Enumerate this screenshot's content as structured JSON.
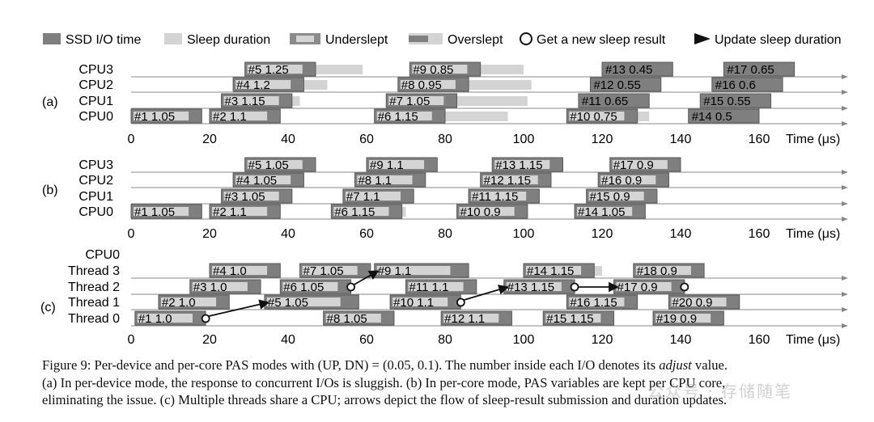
{
  "legend": {
    "ssd": "SSD I/O time",
    "sleep": "Sleep duration",
    "under": "Underslept",
    "over": "Overslept",
    "get": "Get a new sleep result",
    "update": "Update sleep duration"
  },
  "colors": {
    "ssd": "#7f7f7f",
    "ssd_edge": "#5a5a5a",
    "sleep": "#d4d4d4",
    "base": "#f2f2f2",
    "axis": "#888888"
  },
  "time_axis": {
    "ticks": [
      "0",
      "20",
      "40",
      "60",
      "80",
      "100",
      "120",
      "140",
      "160"
    ],
    "label": "Time (μs)"
  },
  "panels": [
    {
      "id": "a",
      "label": "(a)",
      "rows": [
        "CPU3",
        "CPU2",
        "CPU1",
        "CPU0"
      ],
      "ios": [
        {
          "row": 3,
          "id": "#1",
          "val": "1.05",
          "s": 0,
          "e": 18,
          "sleep_end": null,
          "kind": "normal"
        },
        {
          "row": 3,
          "id": "#2",
          "val": "1.1",
          "s": 20,
          "e": 38,
          "sleep_end": null,
          "kind": "normal"
        },
        {
          "row": 2,
          "id": "#3",
          "val": "1.15",
          "s": 23,
          "e": 41,
          "sleep_end": 43,
          "kind": "normal"
        },
        {
          "row": 1,
          "id": "#4",
          "val": "1.2",
          "s": 26,
          "e": 44,
          "sleep_end": 50,
          "kind": "normal"
        },
        {
          "row": 0,
          "id": "#5",
          "val": "1.25",
          "s": 29,
          "e": 47,
          "sleep_end": 59,
          "kind": "normal"
        },
        {
          "row": 3,
          "id": "#6",
          "val": "1.15",
          "s": 62,
          "e": 80,
          "sleep_end": 96,
          "kind": "normal"
        },
        {
          "row": 2,
          "id": "#7",
          "val": "1.05",
          "s": 65,
          "e": 83,
          "sleep_end": 101,
          "kind": "normal"
        },
        {
          "row": 1,
          "id": "#8",
          "val": "0.95",
          "s": 68,
          "e": 86,
          "sleep_end": 102,
          "kind": "normal"
        },
        {
          "row": 0,
          "id": "#9",
          "val": "0.85",
          "s": 71,
          "e": 89,
          "sleep_end": 100,
          "kind": "normal"
        },
        {
          "row": 3,
          "id": "#10",
          "val": "0.75",
          "s": 111,
          "e": 129,
          "sleep_end": 132,
          "kind": "normal"
        },
        {
          "row": 2,
          "id": "#11",
          "val": "0.65",
          "s": 114,
          "e": 132,
          "sleep_end": null,
          "kind": "dark"
        },
        {
          "row": 1,
          "id": "#12",
          "val": "0.55",
          "s": 117,
          "e": 135,
          "sleep_end": null,
          "kind": "dark"
        },
        {
          "row": 0,
          "id": "#13",
          "val": "0.45",
          "s": 120,
          "e": 138,
          "sleep_end": null,
          "kind": "dark"
        },
        {
          "row": 3,
          "id": "#14",
          "val": "0.5",
          "s": 142,
          "e": 160,
          "sleep_end": null,
          "kind": "dark"
        },
        {
          "row": 2,
          "id": "#15",
          "val": "0.55",
          "s": 145,
          "e": 163,
          "sleep_end": null,
          "kind": "dark"
        },
        {
          "row": 1,
          "id": "#16",
          "val": "0.6",
          "s": 148,
          "e": 166,
          "sleep_end": null,
          "kind": "dark"
        },
        {
          "row": 0,
          "id": "#17",
          "val": "0.65",
          "s": 151,
          "e": 169,
          "sleep_end": null,
          "kind": "dark"
        }
      ]
    },
    {
      "id": "b",
      "label": "(b)",
      "rows": [
        "CPU3",
        "CPU2",
        "CPU1",
        "CPU0"
      ],
      "ios": [
        {
          "row": 3,
          "id": "#1",
          "val": "1.05",
          "s": 0,
          "e": 18,
          "sleep_end": null,
          "kind": "normal"
        },
        {
          "row": 3,
          "id": "#2",
          "val": "1.1",
          "s": 20,
          "e": 38,
          "sleep_end": null,
          "kind": "normal"
        },
        {
          "row": 2,
          "id": "#3",
          "val": "1.05",
          "s": 23,
          "e": 41,
          "sleep_end": null,
          "kind": "normal"
        },
        {
          "row": 1,
          "id": "#4",
          "val": "1.05",
          "s": 26,
          "e": 44,
          "sleep_end": null,
          "kind": "normal"
        },
        {
          "row": 0,
          "id": "#5",
          "val": "1.05",
          "s": 29,
          "e": 47,
          "sleep_end": null,
          "kind": "normal"
        },
        {
          "row": 3,
          "id": "#6",
          "val": "1.15",
          "s": 51,
          "e": 69,
          "sleep_end": 70,
          "kind": "normal"
        },
        {
          "row": 2,
          "id": "#7",
          "val": "1.1",
          "s": 54,
          "e": 72,
          "sleep_end": null,
          "kind": "normal"
        },
        {
          "row": 1,
          "id": "#8",
          "val": "1.1",
          "s": 57,
          "e": 75,
          "sleep_end": null,
          "kind": "normal"
        },
        {
          "row": 0,
          "id": "#9",
          "val": "1.1",
          "s": 60,
          "e": 78,
          "sleep_end": null,
          "kind": "normal"
        },
        {
          "row": 3,
          "id": "#10",
          "val": "0.9",
          "s": 83,
          "e": 101,
          "sleep_end": null,
          "kind": "normal"
        },
        {
          "row": 2,
          "id": "#11",
          "val": "1.15",
          "s": 86,
          "e": 104,
          "sleep_end": null,
          "kind": "normal"
        },
        {
          "row": 1,
          "id": "#12",
          "val": "1.15",
          "s": 89,
          "e": 107,
          "sleep_end": null,
          "kind": "normal"
        },
        {
          "row": 0,
          "id": "#13",
          "val": "1.15",
          "s": 92,
          "e": 110,
          "sleep_end": null,
          "kind": "normal"
        },
        {
          "row": 3,
          "id": "#14",
          "val": "1.05",
          "s": 113,
          "e": 131,
          "sleep_end": null,
          "kind": "normal"
        },
        {
          "row": 2,
          "id": "#15",
          "val": "0.9",
          "s": 116,
          "e": 134,
          "sleep_end": null,
          "kind": "normal"
        },
        {
          "row": 1,
          "id": "#16",
          "val": "0.9",
          "s": 119,
          "e": 137,
          "sleep_end": null,
          "kind": "normal"
        },
        {
          "row": 0,
          "id": "#17",
          "val": "0.9",
          "s": 122,
          "e": 140,
          "sleep_end": null,
          "kind": "normal"
        }
      ]
    },
    {
      "id": "c",
      "label": "(c)",
      "header": "CPU0",
      "rows": [
        "Thread 3",
        "Thread 2",
        "Thread 1",
        "Thread 0"
      ],
      "ios": [
        {
          "row": 3,
          "id": "#1",
          "val": "1.0",
          "s": 1,
          "e": 19,
          "sleep_end": null,
          "kind": "normal"
        },
        {
          "row": 2,
          "id": "#2",
          "val": "1.0",
          "s": 7,
          "e": 25,
          "sleep_end": null,
          "kind": "normal"
        },
        {
          "row": 1,
          "id": "#3",
          "val": "1.0",
          "s": 15,
          "e": 33,
          "sleep_end": null,
          "kind": "normal"
        },
        {
          "row": 0,
          "id": "#4",
          "val": "1.0",
          "s": 20,
          "e": 38,
          "sleep_end": null,
          "kind": "normal"
        },
        {
          "row": 2,
          "id": "#5",
          "val": "1.05",
          "s": 34,
          "e": 58,
          "sleep_end": null,
          "kind": "normal"
        },
        {
          "row": 1,
          "id": "#6",
          "val": "1.05",
          "s": 38,
          "e": 56,
          "sleep_end": null,
          "kind": "normal"
        },
        {
          "row": 0,
          "id": "#7",
          "val": "1.05",
          "s": 43,
          "e": 61,
          "sleep_end": null,
          "kind": "normal"
        },
        {
          "row": 3,
          "id": "#8",
          "val": "1.05",
          "s": 49,
          "e": 67,
          "sleep_end": null,
          "kind": "normal"
        },
        {
          "row": 0,
          "id": "#9",
          "val": "1.1",
          "s": 62,
          "e": 86,
          "sleep_end": null,
          "kind": "normal"
        },
        {
          "row": 2,
          "id": "#10",
          "val": "1.1",
          "s": 66,
          "e": 84,
          "sleep_end": null,
          "kind": "normal"
        },
        {
          "row": 1,
          "id": "#11",
          "val": "1.1",
          "s": 70,
          "e": 88,
          "sleep_end": null,
          "kind": "normal"
        },
        {
          "row": 3,
          "id": "#12",
          "val": "1.1",
          "s": 79,
          "e": 97,
          "sleep_end": null,
          "kind": "normal"
        },
        {
          "row": 1,
          "id": "#13",
          "val": "1.15",
          "s": 95,
          "e": 113,
          "sleep_end": null,
          "kind": "normal"
        },
        {
          "row": 0,
          "id": "#14",
          "val": "1.15",
          "s": 100,
          "e": 118,
          "sleep_end": 120,
          "kind": "normal"
        },
        {
          "row": 3,
          "id": "#15",
          "val": "1.15",
          "s": 105,
          "e": 123,
          "sleep_end": null,
          "kind": "normal"
        },
        {
          "row": 2,
          "id": "#16",
          "val": "1.15",
          "s": 111,
          "e": 129,
          "sleep_end": null,
          "kind": "normal"
        },
        {
          "row": 1,
          "id": "#17",
          "val": "0.9",
          "s": 123,
          "e": 141,
          "sleep_end": null,
          "kind": "normal"
        },
        {
          "row": 0,
          "id": "#18",
          "val": "0.9",
          "s": 128,
          "e": 146,
          "sleep_end": null,
          "kind": "normal"
        },
        {
          "row": 3,
          "id": "#19",
          "val": "0.9",
          "s": 133,
          "e": 151,
          "sleep_end": null,
          "kind": "normal"
        },
        {
          "row": 2,
          "id": "#20",
          "val": "0.9",
          "s": 137,
          "e": 155,
          "sleep_end": null,
          "kind": "normal"
        }
      ],
      "arrows": [
        {
          "from_row": 3,
          "from_t": 19,
          "to_row": 2,
          "to_t": 35
        },
        {
          "from_row": 1,
          "from_t": 56,
          "to_row": 0,
          "to_t": 63
        },
        {
          "from_row": 2,
          "from_t": 84,
          "to_row": 1,
          "to_t": 96
        },
        {
          "from_row": 1,
          "from_t": 113,
          "to_row": 1,
          "to_t": 124
        },
        {
          "from_row": 1,
          "from_t": 141,
          "to_row": 1,
          "to_t": 141
        }
      ]
    }
  ],
  "caption": {
    "line1_a": "Figure 9: Per-device and per-core PAS modes with ",
    "line1_math": "(UP, DN) = (0.05, 0.1)",
    "line1_b": ". The number inside each I/O denotes its ",
    "line1_em": "adjust",
    "line1_c": " value.",
    "line2": "(a) In per-device mode, the response to concurrent I/Os is sluggish. (b) In per-core mode, PAS variables are kept per CPU core,",
    "line3": "eliminating the issue. (c) Multiple threads share a CPU; arrows depict the flow of sleep-result submission and duration updates."
  },
  "watermark": "公众号 · 存储随笔"
}
